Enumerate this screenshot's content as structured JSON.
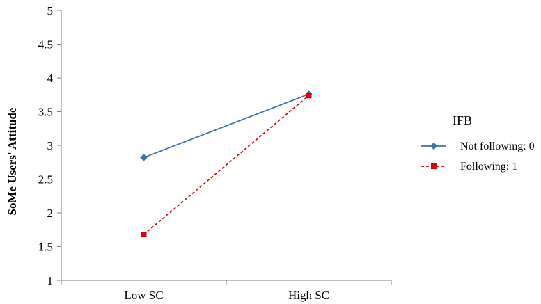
{
  "chart_data": {
    "type": "line",
    "title": "",
    "xlabel": "",
    "ylabel": "SoMe Users' Attitude",
    "categories": [
      "Low SC",
      "High SC"
    ],
    "yticks": [
      "1",
      "1.5",
      "2",
      "2.5",
      "3",
      "3.5",
      "4",
      "4.5",
      "5"
    ],
    "ylim": [
      1,
      5
    ],
    "grid": false,
    "legend": {
      "title": "IFB",
      "placement": "right"
    },
    "series": [
      {
        "name": "Not following: 0",
        "values": [
          2.82,
          3.76
        ],
        "color": "#3b6fb6",
        "marker": "diamond",
        "line_style": "solid"
      },
      {
        "name": "Following: 1",
        "values": [
          1.68,
          3.74
        ],
        "color": "#e00000",
        "marker": "square",
        "line_style": "dashed"
      }
    ]
  }
}
